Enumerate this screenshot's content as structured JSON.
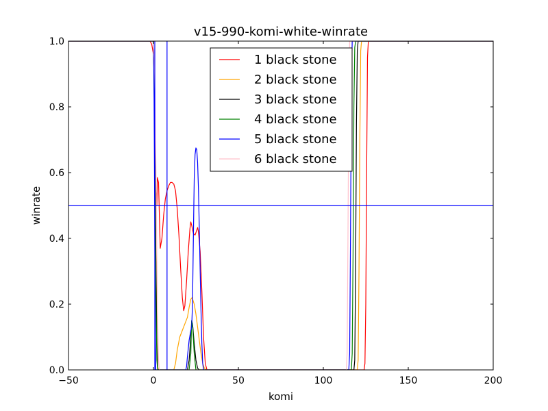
{
  "chart_data": {
    "type": "line",
    "title": "v15-990-komi-white-winrate",
    "xlabel": "komi",
    "ylabel": "winrate",
    "xlim": [
      -50,
      200
    ],
    "ylim": [
      0.0,
      1.0
    ],
    "xticks": [
      -50,
      0,
      50,
      100,
      150,
      200
    ],
    "xtick_labels": [
      "−50",
      "0",
      "50",
      "100",
      "150",
      "200"
    ],
    "yticks": [
      0.0,
      0.2,
      0.4,
      0.6,
      0.8,
      1.0
    ],
    "ytick_labels": [
      "0.0",
      "0.2",
      "0.4",
      "0.6",
      "0.8",
      "1.0"
    ],
    "grid": false,
    "legend_position": "top-center",
    "reference_lines": [
      {
        "orientation": "horizontal",
        "value": 0.5,
        "color": "#0000ff"
      },
      {
        "orientation": "vertical",
        "value": 0.8,
        "color": "#0000ff"
      },
      {
        "orientation": "vertical",
        "value": 8.0,
        "color": "#0000ff"
      }
    ],
    "series": [
      {
        "name": "1 black stone",
        "color": "#ff0000",
        "points": [
          [
            -50,
            1.0
          ],
          [
            -2,
            1.0
          ],
          [
            -1,
            0.99
          ],
          [
            0,
            0.96
          ],
          [
            0.5,
            0.88
          ],
          [
            1,
            0.7
          ],
          [
            1.5,
            0.55
          ],
          [
            2,
            0.5
          ],
          [
            2.3,
            0.585
          ],
          [
            3,
            0.57
          ],
          [
            4,
            0.37
          ],
          [
            5,
            0.4
          ],
          [
            6,
            0.47
          ],
          [
            7,
            0.52
          ],
          [
            8,
            0.545
          ],
          [
            9,
            0.56
          ],
          [
            10,
            0.57
          ],
          [
            11,
            0.57
          ],
          [
            12,
            0.565
          ],
          [
            13,
            0.545
          ],
          [
            14,
            0.49
          ],
          [
            15,
            0.41
          ],
          [
            16,
            0.31
          ],
          [
            17,
            0.22
          ],
          [
            17.8,
            0.18
          ],
          [
            18.5,
            0.195
          ],
          [
            19.5,
            0.27
          ],
          [
            20.5,
            0.36
          ],
          [
            21.5,
            0.43
          ],
          [
            22,
            0.45
          ],
          [
            22.5,
            0.44
          ],
          [
            23.5,
            0.415
          ],
          [
            24.5,
            0.41
          ],
          [
            25.5,
            0.425
          ],
          [
            26,
            0.433
          ],
          [
            26.5,
            0.42
          ],
          [
            27.5,
            0.36
          ],
          [
            28.5,
            0.24
          ],
          [
            29.5,
            0.1
          ],
          [
            30.5,
            0.02
          ],
          [
            31.5,
            0.0
          ],
          [
            124,
            0.0
          ],
          [
            124.5,
            0.02
          ],
          [
            125,
            0.2
          ],
          [
            125.5,
            0.6
          ],
          [
            126,
            0.95
          ],
          [
            126.5,
            1.0
          ],
          [
            200,
            1.0
          ]
        ]
      },
      {
        "name": "2 black stone",
        "color": "#ffa500",
        "points": [
          [
            -50,
            1.0
          ],
          [
            0,
            1.0
          ],
          [
            0.5,
            0.9
          ],
          [
            1,
            0.65
          ],
          [
            1.5,
            0.35
          ],
          [
            2,
            0.1
          ],
          [
            2.5,
            0.01
          ],
          [
            3,
            0.0
          ],
          [
            12,
            0.0
          ],
          [
            13,
            0.02
          ],
          [
            14,
            0.06
          ],
          [
            15.5,
            0.1
          ],
          [
            17,
            0.12
          ],
          [
            18.5,
            0.14
          ],
          [
            20,
            0.16
          ],
          [
            21,
            0.19
          ],
          [
            22,
            0.215
          ],
          [
            22.8,
            0.22
          ],
          [
            24,
            0.2
          ],
          [
            25,
            0.17
          ],
          [
            26,
            0.13
          ],
          [
            27,
            0.09
          ],
          [
            28,
            0.05
          ],
          [
            29,
            0.02
          ],
          [
            30,
            0.005
          ],
          [
            31,
            0.0
          ],
          [
            120,
            0.0
          ],
          [
            120.5,
            0.03
          ],
          [
            121,
            0.3
          ],
          [
            121.5,
            0.7
          ],
          [
            122,
            0.97
          ],
          [
            122.5,
            1.0
          ],
          [
            200,
            1.0
          ]
        ]
      },
      {
        "name": "3 black stone",
        "color": "#000000",
        "points": [
          [
            -50,
            1.0
          ],
          [
            0,
            1.0
          ],
          [
            0.5,
            0.85
          ],
          [
            1,
            0.6
          ],
          [
            1.5,
            0.3
          ],
          [
            2,
            0.08
          ],
          [
            2.5,
            0.0
          ],
          [
            20,
            0.0
          ],
          [
            21,
            0.03
          ],
          [
            22,
            0.1
          ],
          [
            22.5,
            0.15
          ],
          [
            23.2,
            0.13
          ],
          [
            24,
            0.08
          ],
          [
            25,
            0.03
          ],
          [
            26,
            0.005
          ],
          [
            27,
            0.0
          ],
          [
            118,
            0.0
          ],
          [
            118.5,
            0.03
          ],
          [
            119,
            0.3
          ],
          [
            119.5,
            0.75
          ],
          [
            120,
            0.97
          ],
          [
            120.5,
            1.0
          ],
          [
            200,
            1.0
          ]
        ]
      },
      {
        "name": "4 black stone",
        "color": "#008000",
        "points": [
          [
            -50,
            1.0
          ],
          [
            0,
            1.0
          ],
          [
            0.5,
            0.8
          ],
          [
            1,
            0.5
          ],
          [
            1.5,
            0.2
          ],
          [
            2,
            0.03
          ],
          [
            2.5,
            0.0
          ],
          [
            21,
            0.0
          ],
          [
            22,
            0.05
          ],
          [
            22.5,
            0.15
          ],
          [
            23,
            0.14
          ],
          [
            24,
            0.05
          ],
          [
            25,
            0.0
          ],
          [
            116.5,
            0.0
          ],
          [
            117,
            0.05
          ],
          [
            117.5,
            0.35
          ],
          [
            118,
            0.8
          ],
          [
            118.5,
            0.98
          ],
          [
            119,
            1.0
          ],
          [
            200,
            1.0
          ]
        ]
      },
      {
        "name": "5 black stone",
        "color": "#0000ff",
        "points": [
          [
            -50,
            1.0
          ],
          [
            0,
            1.0
          ],
          [
            0.3,
            0.9
          ],
          [
            0.6,
            0.6
          ],
          [
            0.8,
            0.4
          ],
          [
            1.1,
            0.1
          ],
          [
            1.4,
            0.0
          ],
          [
            19,
            0.0
          ],
          [
            19.5,
            0.01
          ],
          [
            20,
            0.04
          ],
          [
            21,
            0.09
          ],
          [
            22,
            0.12
          ],
          [
            22.5,
            0.13
          ],
          [
            23,
            0.2
          ],
          [
            23.5,
            0.4
          ],
          [
            24,
            0.58
          ],
          [
            24.5,
            0.655
          ],
          [
            25,
            0.675
          ],
          [
            25.5,
            0.67
          ],
          [
            26,
            0.63
          ],
          [
            26.5,
            0.55
          ],
          [
            27,
            0.43
          ],
          [
            27.5,
            0.3
          ],
          [
            28,
            0.18
          ],
          [
            28.5,
            0.08
          ],
          [
            29,
            0.02
          ],
          [
            29.5,
            0.0
          ],
          [
            115,
            0.0
          ],
          [
            115.5,
            0.05
          ],
          [
            116,
            0.4
          ],
          [
            116.5,
            0.85
          ],
          [
            117,
            1.0
          ],
          [
            200,
            1.0
          ]
        ]
      },
      {
        "name": "6 black stone",
        "color": "#ffc0cb",
        "points": [
          [
            -50,
            1.0
          ],
          [
            0,
            1.0
          ],
          [
            0.5,
            0.95
          ],
          [
            1,
            0.8
          ],
          [
            1.5,
            0.6
          ],
          [
            2,
            0.35
          ],
          [
            2.5,
            0.15
          ],
          [
            3,
            0.03
          ],
          [
            3.5,
            0.0
          ],
          [
            113.5,
            0.0
          ],
          [
            114,
            0.05
          ],
          [
            114.5,
            0.4
          ],
          [
            115,
            0.85
          ],
          [
            115.5,
            1.0
          ],
          [
            200,
            1.0
          ]
        ]
      }
    ]
  }
}
